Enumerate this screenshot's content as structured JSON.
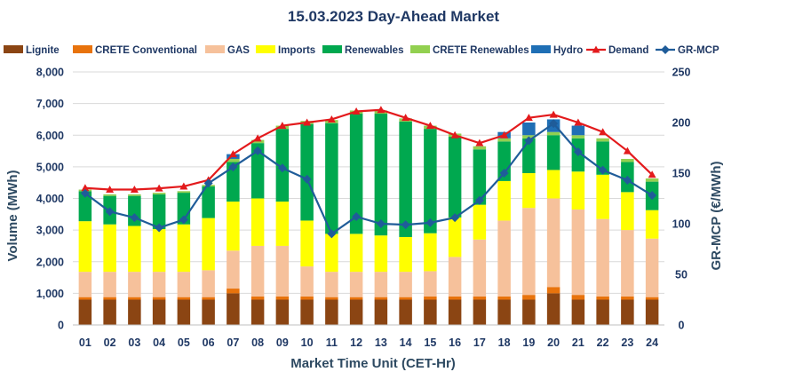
{
  "chart_data": {
    "type": "bar",
    "title": "15.03.2023  Day-Ahead Market",
    "xlabel": "Market Time Unit (CET-Hr)",
    "ylabel": "Volume (MWh)",
    "y2label": "GR-MCP (€/MWh)",
    "ylim": [
      0,
      8000
    ],
    "y2lim": [
      0,
      250
    ],
    "yticks": [
      "0",
      "1,000",
      "2,000",
      "3,000",
      "4,000",
      "5,000",
      "6,000",
      "7,000",
      "8,000"
    ],
    "y2ticks": [
      "0",
      "50",
      "100",
      "150",
      "200",
      "250"
    ],
    "grid": true,
    "legend_position": "top",
    "categories": [
      "01",
      "02",
      "03",
      "04",
      "05",
      "06",
      "07",
      "08",
      "09",
      "10",
      "11",
      "12",
      "13",
      "14",
      "15",
      "16",
      "17",
      "18",
      "19",
      "20",
      "21",
      "22",
      "23",
      "24"
    ],
    "series": [
      {
        "name": "Lignite",
        "kind": "stacked-bar",
        "color": "#8b4513",
        "values": [
          800,
          800,
          800,
          800,
          800,
          800,
          1000,
          800,
          800,
          800,
          800,
          800,
          800,
          800,
          800,
          800,
          800,
          800,
          800,
          1000,
          800,
          800,
          800,
          800
        ]
      },
      {
        "name": "CRETE Conventional",
        "kind": "stacked-bar",
        "color": "#e8730c",
        "values": [
          80,
          80,
          80,
          80,
          80,
          80,
          150,
          100,
          100,
          100,
          80,
          80,
          80,
          80,
          100,
          100,
          100,
          100,
          150,
          200,
          150,
          100,
          100,
          80
        ]
      },
      {
        "name": "GAS",
        "kind": "stacked-bar",
        "color": "#f6c19b",
        "values": [
          800,
          800,
          800,
          800,
          800,
          850,
          1200,
          1600,
          1600,
          950,
          800,
          800,
          800,
          800,
          800,
          1250,
          1800,
          2400,
          2750,
          2800,
          2700,
          2450,
          2100,
          1850
        ]
      },
      {
        "name": "Imports",
        "kind": "stacked-bar",
        "color": "#ffff00",
        "values": [
          1600,
          1500,
          1450,
          1350,
          1500,
          1650,
          1550,
          1500,
          1400,
          1450,
          1200,
          1200,
          1150,
          1100,
          1200,
          1250,
          1100,
          1250,
          1100,
          900,
          1200,
          1400,
          1200,
          900
        ]
      },
      {
        "name": "Renewables",
        "kind": "stacked-bar",
        "color": "#00a84f",
        "values": [
          950,
          900,
          950,
          1100,
          1000,
          1000,
          1250,
          1750,
          2300,
          3050,
          3500,
          3800,
          3850,
          3650,
          3300,
          2550,
          1750,
          1250,
          1100,
          1100,
          1050,
          1050,
          950,
          900
        ]
      },
      {
        "name": "CRETE Renewables",
        "kind": "stacked-bar",
        "color": "#92d050",
        "values": [
          50,
          50,
          50,
          50,
          50,
          50,
          100,
          100,
          100,
          100,
          100,
          100,
          100,
          100,
          100,
          100,
          100,
          100,
          100,
          100,
          100,
          100,
          100,
          100
        ]
      },
      {
        "name": "Hydro",
        "kind": "stacked-bar",
        "color": "#1f6fb5",
        "values": [
          0,
          0,
          0,
          0,
          0,
          0,
          150,
          0,
          0,
          0,
          0,
          0,
          0,
          0,
          0,
          0,
          0,
          200,
          400,
          400,
          300,
          0,
          0,
          0
        ]
      },
      {
        "name": "Demand",
        "kind": "line",
        "axis": "left",
        "color": "#e31a1c",
        "marker": "triangle",
        "values": [
          4330,
          4280,
          4280,
          4320,
          4380,
          4580,
          5400,
          5900,
          6300,
          6400,
          6500,
          6750,
          6800,
          6550,
          6300,
          6000,
          5750,
          6000,
          6550,
          6650,
          6400,
          6100,
          5500,
          4750
        ]
      },
      {
        "name": "GR-MCP",
        "kind": "line",
        "axis": "right",
        "color": "#1f5c99",
        "marker": "diamond",
        "values": [
          130,
          112,
          106,
          96,
          104,
          140,
          156,
          172,
          155,
          144,
          90,
          107,
          100,
          99,
          101,
          106,
          123,
          150,
          182,
          199,
          171,
          153,
          143,
          128
        ]
      }
    ]
  }
}
